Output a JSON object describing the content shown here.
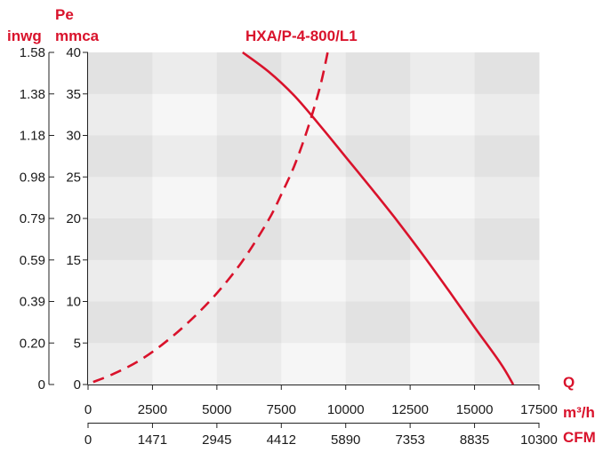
{
  "chart_data": {
    "type": "line",
    "title": "HXA/P-4-800/L1",
    "y_left_unit": "inwg",
    "y_label_line1": "Pe",
    "y_label_line2": "mmca",
    "x_quantity_label": "Q",
    "x_unit_primary": "m³/h",
    "x_unit_secondary": "CFM",
    "xlim": [
      0,
      17500
    ],
    "ylim": [
      0,
      40
    ],
    "x_ticks": [
      "0",
      "2500",
      "5000",
      "7500",
      "10000",
      "12500",
      "15000",
      "17500"
    ],
    "x_ticks_cfm": [
      "0",
      "1471",
      "2945",
      "4412",
      "5890",
      "7353",
      "8835",
      "10300"
    ],
    "y_ticks": [
      "0",
      "5",
      "10",
      "15",
      "20",
      "25",
      "30",
      "35",
      "40"
    ],
    "y_ticks_inwg": [
      "0",
      "0.20",
      "0.39",
      "0.59",
      "0.79",
      "0.98",
      "1.18",
      "1.38",
      "1.58"
    ],
    "grid": "alternating shaded bands",
    "colors": {
      "curve": "#d9122b",
      "label": "#d9122b"
    },
    "series": [
      {
        "style": "solid",
        "x": [
          6000,
          7000,
          8000,
          9000,
          10000,
          11000,
          12000,
          13000,
          14000,
          15000,
          16000,
          16500
        ],
        "y": [
          40,
          37.7,
          34.8,
          31.2,
          27.4,
          23.6,
          19.7,
          15.6,
          11.3,
          6.9,
          2.6,
          0
        ]
      },
      {
        "style": "dashed",
        "x": [
          200,
          1000,
          2000,
          3000,
          4000,
          5000,
          6000,
          7000,
          7500,
          8000,
          8500,
          9000,
          9300
        ],
        "y": [
          0.3,
          1.3,
          2.9,
          5.1,
          7.8,
          11.0,
          14.9,
          19.8,
          22.9,
          26.3,
          30.6,
          35.8,
          40
        ]
      }
    ]
  }
}
